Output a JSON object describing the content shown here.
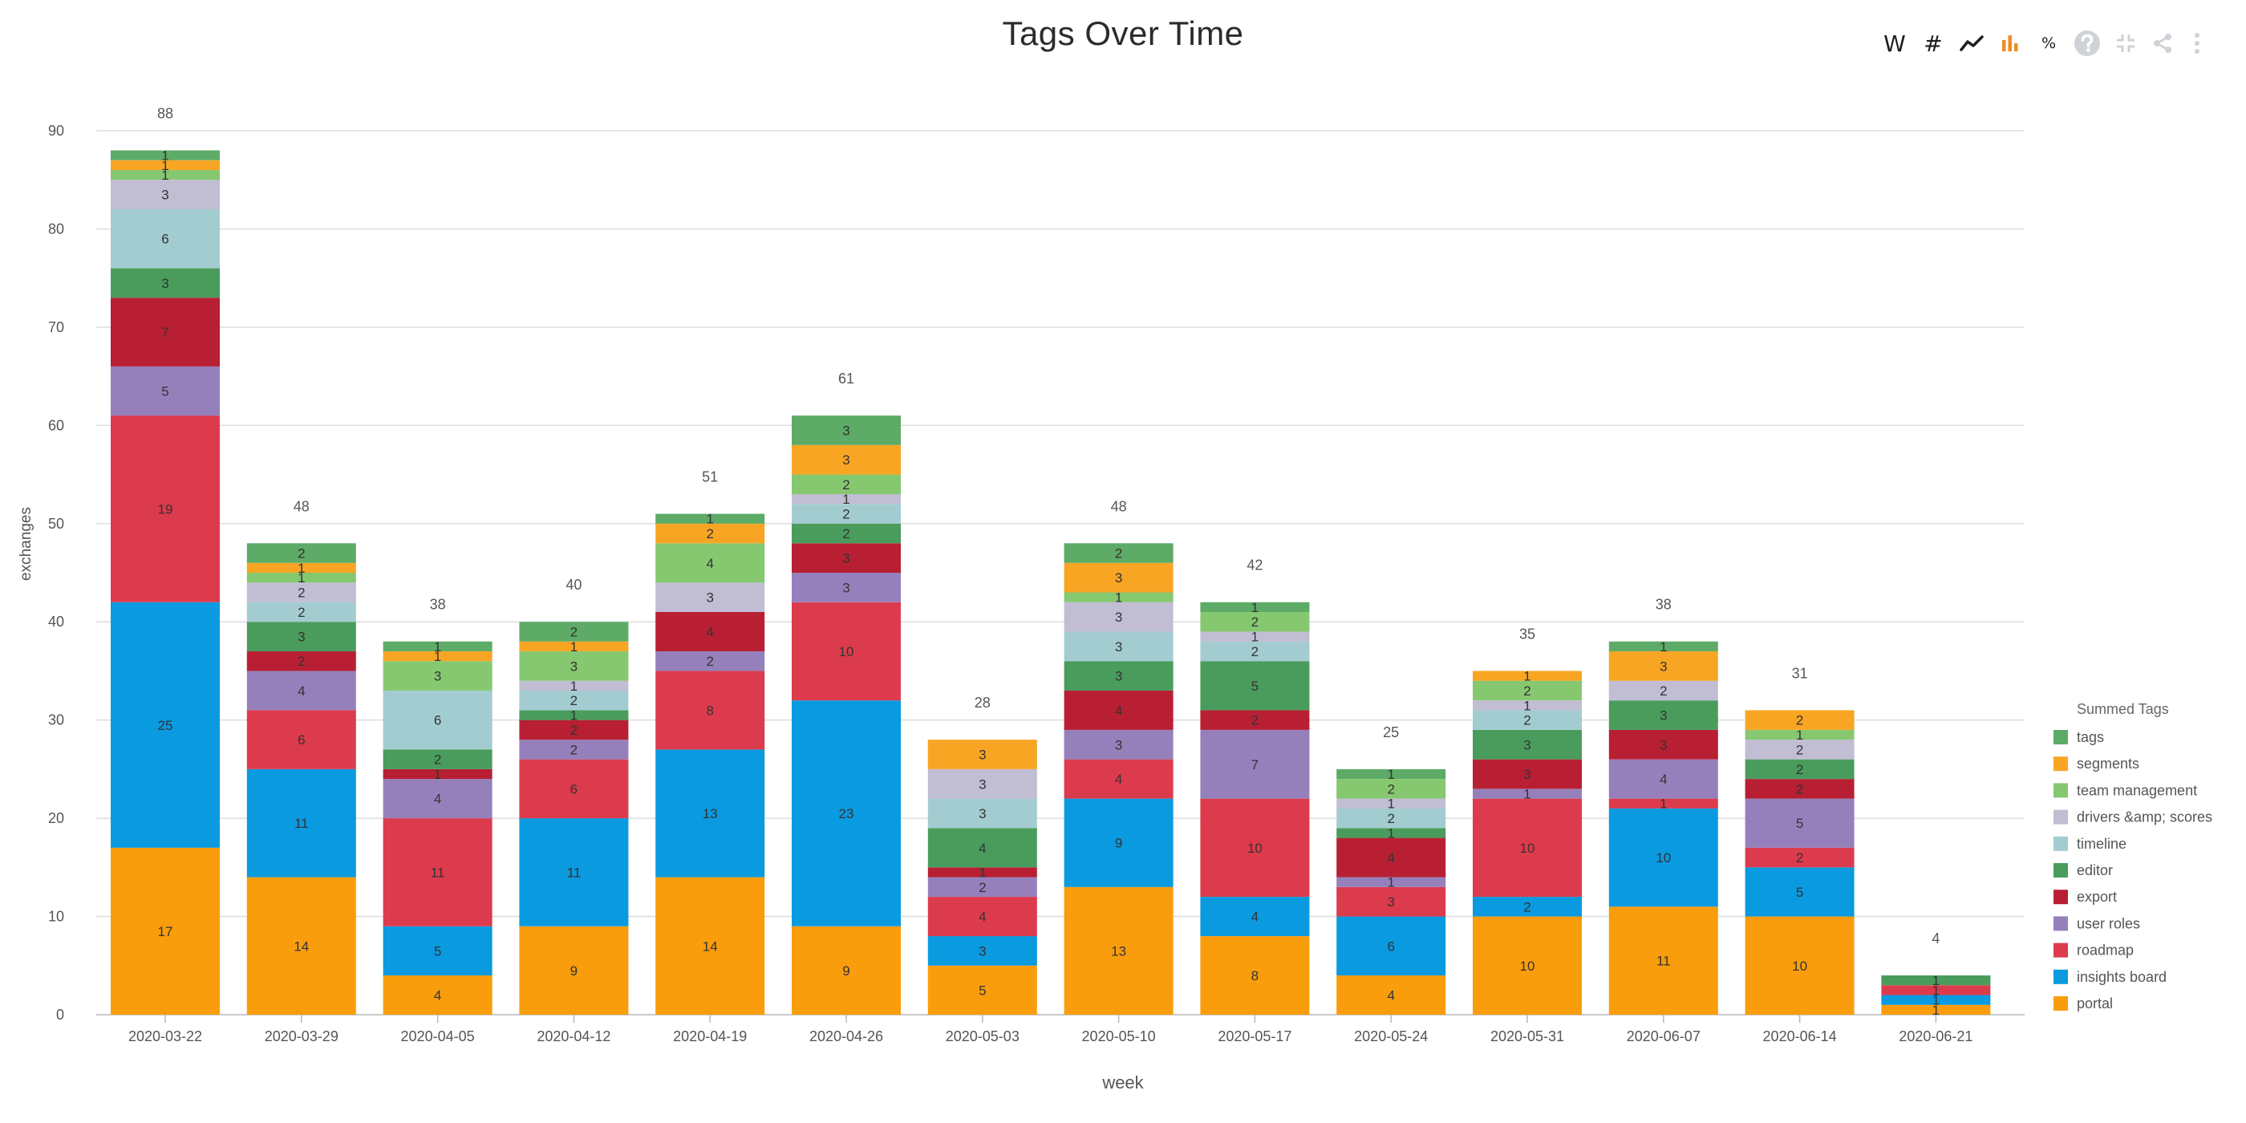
{
  "toolbar": {
    "week_label": "W",
    "count_label": "#",
    "percent_label": "%",
    "colors": {
      "icon": "#1e1e1e",
      "active": "#f08a24",
      "disabled": "#cfd3d8"
    },
    "icons": [
      "line-chart-icon",
      "bar-chart-icon",
      "help-icon",
      "collapse-icon",
      "share-icon",
      "more-vert-icon"
    ]
  },
  "chart_data": {
    "type": "bar",
    "stacked": true,
    "title": "Tags Over Time",
    "xlabel": "week",
    "ylabel": "exchanges",
    "ylim": [
      0,
      90
    ],
    "yticks": [
      0,
      10,
      20,
      30,
      40,
      50,
      60,
      70,
      80,
      90
    ],
    "grid": true,
    "legend_title": "Summed Tags",
    "legend_position": "right",
    "categories": [
      "2020-03-22",
      "2020-03-29",
      "2020-04-05",
      "2020-04-12",
      "2020-04-19",
      "2020-04-26",
      "2020-05-03",
      "2020-05-10",
      "2020-05-17",
      "2020-05-24",
      "2020-05-31",
      "2020-06-07",
      "2020-06-14",
      "2020-06-21"
    ],
    "totals": [
      88,
      48,
      38,
      40,
      51,
      61,
      28,
      48,
      42,
      25,
      35,
      38,
      31,
      4
    ],
    "series": [
      {
        "name": "portal",
        "color": "#f99d0c",
        "values": [
          17,
          14,
          4,
          9,
          14,
          9,
          5,
          13,
          8,
          4,
          10,
          11,
          10,
          1
        ]
      },
      {
        "name": "insights board",
        "color": "#0a9ae0",
        "values": [
          25,
          11,
          5,
          11,
          13,
          23,
          3,
          9,
          4,
          6,
          2,
          10,
          5,
          1
        ]
      },
      {
        "name": "roadmap",
        "color": "#dc3b4d",
        "values": [
          19,
          6,
          11,
          6,
          8,
          10,
          4,
          4,
          10,
          3,
          10,
          1,
          2,
          1
        ]
      },
      {
        "name": "user roles",
        "color": "#9680bb",
        "values": [
          5,
          4,
          4,
          2,
          2,
          3,
          2,
          3,
          7,
          1,
          1,
          4,
          5,
          0
        ]
      },
      {
        "name": "export",
        "color": "#b81f33",
        "values": [
          7,
          2,
          1,
          2,
          4,
          3,
          1,
          4,
          2,
          4,
          3,
          3,
          2,
          0
        ]
      },
      {
        "name": "editor",
        "color": "#4a9c5c",
        "values": [
          3,
          3,
          2,
          1,
          0,
          2,
          4,
          3,
          5,
          1,
          3,
          3,
          2,
          1
        ]
      },
      {
        "name": "timeline",
        "color": "#a3ccd0",
        "values": [
          6,
          2,
          6,
          2,
          0,
          2,
          3,
          3,
          2,
          2,
          2,
          0,
          0,
          0
        ]
      },
      {
        "name": "drivers &amp; scores",
        "color": "#c1bdd3",
        "values": [
          3,
          2,
          0,
          1,
          3,
          1,
          3,
          3,
          1,
          1,
          1,
          2,
          2,
          0
        ]
      },
      {
        "name": "team management",
        "color": "#86c870",
        "values": [
          1,
          1,
          3,
          3,
          4,
          2,
          0,
          1,
          2,
          2,
          2,
          0,
          1,
          0
        ]
      },
      {
        "name": "segments",
        "color": "#f9a524",
        "values": [
          1,
          1,
          1,
          1,
          2,
          3,
          3,
          3,
          0,
          0,
          1,
          3,
          2,
          0
        ]
      },
      {
        "name": "tags",
        "color": "#5dab67",
        "values": [
          1,
          2,
          1,
          2,
          1,
          3,
          0,
          2,
          1,
          1,
          0,
          1,
          0,
          0
        ]
      }
    ]
  }
}
